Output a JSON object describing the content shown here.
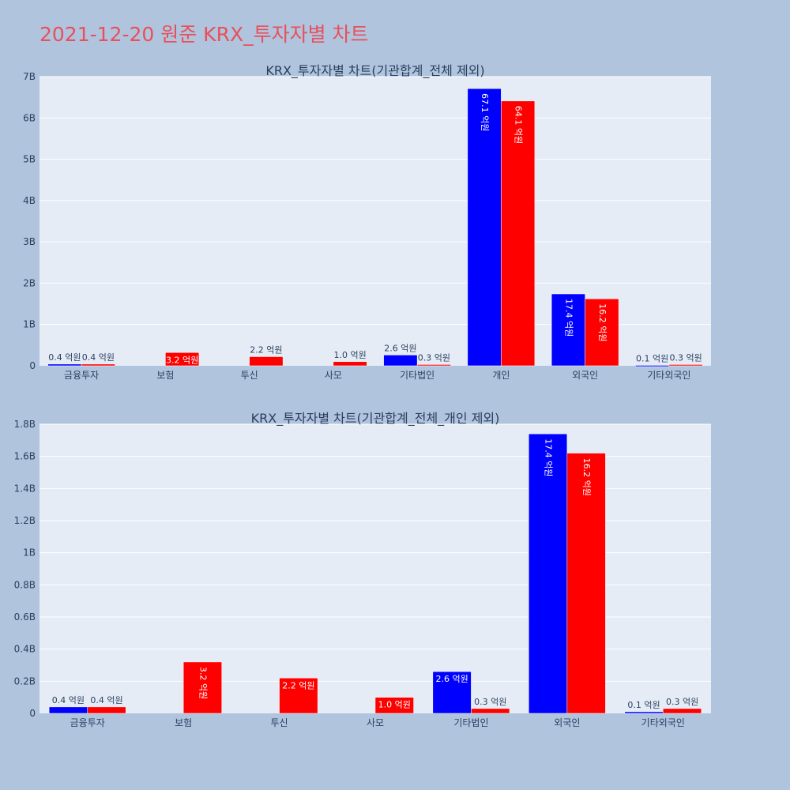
{
  "title": "2021-12-20 원준 KRX_투자자별 차트",
  "colors": {
    "buy": "#0000ff",
    "sell": "#ff0000",
    "plot_bg": "#e5ecf6",
    "page_bg": "#b0c4de",
    "title": "#e8505b"
  },
  "chart_data": [
    {
      "type": "bar",
      "title": "KRX_투자자별 차트(기관합계_전체 제외)",
      "categories": [
        "금융투자",
        "보험",
        "투신",
        "사모",
        "기타법인",
        "개인",
        "외국인",
        "기타외국인"
      ],
      "series": [
        {
          "values": [
            0.04,
            0,
            0,
            0,
            0.26,
            6.71,
            1.74,
            0.01
          ],
          "labels": [
            "0.4 억원",
            "",
            "",
            "",
            "2.6 억원",
            "67.1 억원",
            "17.4 억원",
            "0.1 억원"
          ]
        },
        {
          "values": [
            0.04,
            0.32,
            0.22,
            0.1,
            0.03,
            6.41,
            1.62,
            0.03
          ],
          "labels": [
            "0.4 억원",
            "3.2 억원",
            "2.2 억원",
            "1.0 억원",
            "0.3 억원",
            "64.1 억원",
            "16.2 억원",
            "0.3 억원"
          ]
        }
      ],
      "yunit": "B",
      "ylim": [
        0,
        7
      ],
      "yticks": [
        0,
        1,
        2,
        3,
        4,
        5,
        6,
        7
      ],
      "ytick_labels": [
        "0",
        "1B",
        "2B",
        "3B",
        "4B",
        "5B",
        "6B",
        "7B"
      ],
      "grid": true
    },
    {
      "type": "bar",
      "title": "KRX_투자자별 차트(기관합계_전체_개인 제외)",
      "categories": [
        "금융투자",
        "보험",
        "투신",
        "사모",
        "기타법인",
        "외국인",
        "기타외국인"
      ],
      "series": [
        {
          "values": [
            0.04,
            0,
            0,
            0,
            0.26,
            1.74,
            0.01
          ],
          "labels": [
            "0.4 억원",
            "",
            "",
            "",
            "2.6 억원",
            "17.4 억원",
            "0.1 억원"
          ]
        },
        {
          "values": [
            0.04,
            0.32,
            0.22,
            0.1,
            0.03,
            1.62,
            0.03
          ],
          "labels": [
            "0.4 억원",
            "3.2 억원",
            "2.2 억원",
            "1.0 억원",
            "0.3 억원",
            "16.2 억원",
            "0.3 억원"
          ]
        }
      ],
      "yunit": "B",
      "ylim": [
        0,
        1.8
      ],
      "yticks": [
        0,
        0.2,
        0.4,
        0.6,
        0.8,
        1.0,
        1.2,
        1.4,
        1.6,
        1.8
      ],
      "ytick_labels": [
        "0",
        "0.2B",
        "0.4B",
        "0.6B",
        "0.8B",
        "1B",
        "1.2B",
        "1.4B",
        "1.6B",
        "1.8B"
      ],
      "grid": true
    }
  ]
}
